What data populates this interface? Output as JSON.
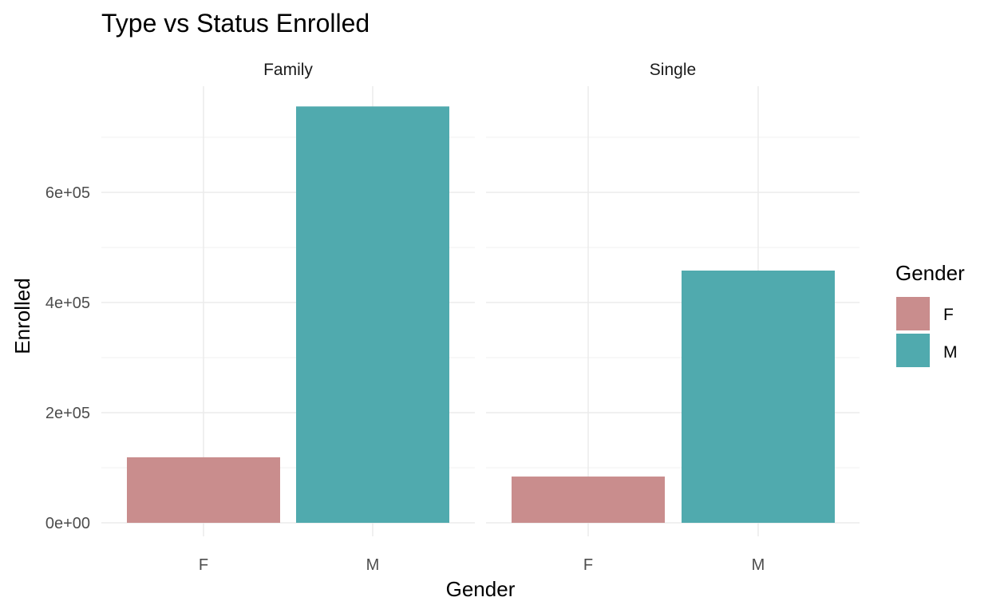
{
  "chart_data": {
    "type": "bar",
    "title": "Type vs Status Enrolled",
    "xlabel": "Gender",
    "ylabel": "Enrolled",
    "ylim": [
      0,
      780000
    ],
    "y_ticks": [
      0,
      200000,
      400000,
      600000
    ],
    "y_tick_labels": [
      "0e+00",
      "2e+05",
      "4e+05",
      "6e+05"
    ],
    "categories": [
      "F",
      "M"
    ],
    "grid": true,
    "legend_position": "right",
    "legend": {
      "title": "Gender",
      "entries": [
        {
          "label": "F",
          "color": "#c98d8d"
        },
        {
          "label": "M",
          "color": "#50aaae"
        }
      ]
    },
    "panels": [
      {
        "name": "Family",
        "values": [
          119000,
          756000
        ]
      },
      {
        "name": "Single",
        "values": [
          84000,
          458000
        ]
      }
    ]
  }
}
